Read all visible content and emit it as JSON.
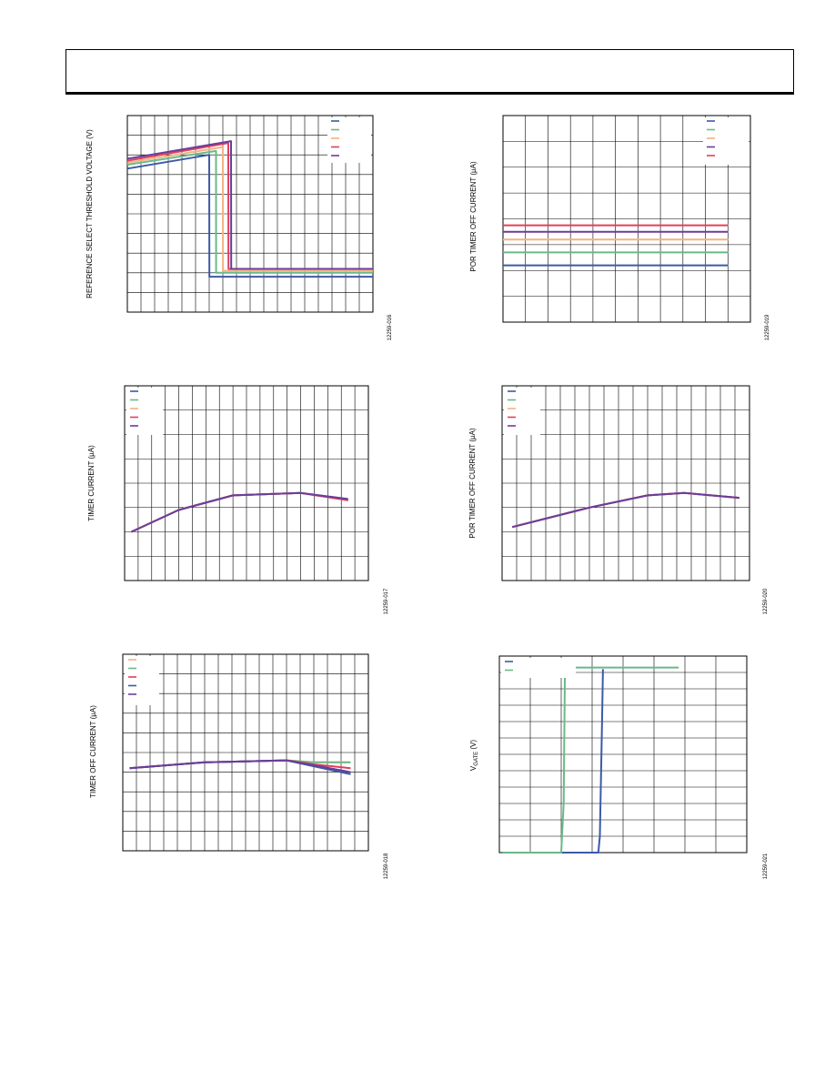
{
  "page": {
    "header_text": ""
  },
  "chart_data": [
    {
      "id": "c1",
      "type": "line",
      "title": "",
      "ylabel": "REFERENCE SELECT THRESHOLD VOLTAGE (V)",
      "figure_code": "12259-016",
      "xlim": [
        0,
        18
      ],
      "ylim": [
        0,
        10
      ],
      "x_divisions": 18,
      "y_divisions": 10,
      "legend": {
        "placement": "top-right"
      },
      "series": [
        {
          "color": "#3c5aa6",
          "x": [
            0,
            6,
            6.0,
            6.01,
            18
          ],
          "y": [
            7.3,
            8.0,
            8.0,
            1.8,
            1.8
          ]
        },
        {
          "color": "#6ab98a",
          "x": [
            0,
            6.5,
            6.5,
            6.51,
            18
          ],
          "y": [
            7.5,
            8.2,
            8.2,
            2.0,
            2.0
          ]
        },
        {
          "color": "#f4b183",
          "x": [
            0,
            7.0,
            7.0,
            7.01,
            18
          ],
          "y": [
            7.6,
            8.4,
            8.4,
            2.1,
            2.1
          ]
        },
        {
          "color": "#e0405a",
          "x": [
            0,
            7.4,
            7.4,
            7.41,
            18
          ],
          "y": [
            7.7,
            8.6,
            8.6,
            2.2,
            2.2
          ]
        },
        {
          "color": "#6a3d9a",
          "x": [
            0,
            7.6,
            7.6,
            7.61,
            18
          ],
          "y": [
            7.8,
            8.7,
            8.7,
            2.2,
            2.2
          ]
        }
      ]
    },
    {
      "id": "c2",
      "type": "line",
      "title": "",
      "ylabel": "POR TIMER OFF CURRENT (µA)",
      "figure_code": "12259-019",
      "xlim": [
        0,
        11
      ],
      "ylim": [
        0,
        8
      ],
      "x_divisions": 11,
      "y_divisions": 8,
      "legend": {
        "placement": "top-right"
      },
      "series": [
        {
          "color": "#3c5aa6",
          "x": [
            0,
            10
          ],
          "y": [
            2.2,
            2.2
          ]
        },
        {
          "color": "#6ab98a",
          "x": [
            0,
            10
          ],
          "y": [
            2.7,
            2.7
          ]
        },
        {
          "color": "#f4b183",
          "x": [
            0,
            10
          ],
          "y": [
            3.2,
            3.2
          ]
        },
        {
          "color": "#6a3d9a",
          "x": [
            0,
            10
          ],
          "y": [
            3.5,
            3.5
          ]
        },
        {
          "color": "#e0405a",
          "x": [
            0,
            10
          ],
          "y": [
            3.75,
            3.75
          ]
        }
      ]
    },
    {
      "id": "c3",
      "type": "line",
      "title": "",
      "ylabel": "TIMER CURRENT (µA)",
      "figure_code": "12259-017",
      "xlim": [
        0,
        18
      ],
      "ylim": [
        0,
        8
      ],
      "x_divisions": 18,
      "y_divisions": 8,
      "legend": {
        "placement": "top-left"
      },
      "series": [
        {
          "color": "#3c5aa6",
          "x": [
            0.5,
            4,
            8,
            13,
            16.5
          ],
          "y": [
            2.0,
            2.9,
            3.5,
            3.6,
            3.3
          ]
        },
        {
          "color": "#6ab98a",
          "x": [
            0.5,
            4,
            8,
            13,
            16.5
          ],
          "y": [
            2.0,
            2.9,
            3.5,
            3.6,
            3.3
          ]
        },
        {
          "color": "#f4b183",
          "x": [
            0.5,
            4,
            8,
            13,
            16.5
          ],
          "y": [
            2.0,
            2.9,
            3.5,
            3.6,
            3.3
          ]
        },
        {
          "color": "#e0405a",
          "x": [
            0.5,
            4,
            8,
            13,
            16.5
          ],
          "y": [
            2.0,
            2.9,
            3.5,
            3.6,
            3.3
          ]
        },
        {
          "color": "#6a3d9a",
          "x": [
            0.5,
            4,
            8,
            13,
            16.5
          ],
          "y": [
            2.0,
            2.9,
            3.5,
            3.6,
            3.35
          ]
        }
      ]
    },
    {
      "id": "c4",
      "type": "line",
      "title": "",
      "ylabel": "POR TIMER OFF CURRENT (µA)",
      "figure_code": "12259-020",
      "xlim": [
        0,
        17
      ],
      "ylim": [
        0,
        8
      ],
      "x_divisions": 17,
      "y_divisions": 8,
      "legend": {
        "placement": "top-left"
      },
      "series": [
        {
          "color": "#3c5aa6",
          "x": [
            0.7,
            6,
            10,
            12.5,
            16.3
          ],
          "y": [
            2.2,
            3.0,
            3.5,
            3.6,
            3.4
          ]
        },
        {
          "color": "#6ab98a",
          "x": [
            0.7,
            6,
            10,
            12.5,
            16.3
          ],
          "y": [
            2.2,
            3.0,
            3.5,
            3.6,
            3.4
          ]
        },
        {
          "color": "#f4b183",
          "x": [
            0.7,
            6,
            10,
            12.5,
            16.3
          ],
          "y": [
            2.2,
            3.0,
            3.5,
            3.6,
            3.4
          ]
        },
        {
          "color": "#e0405a",
          "x": [
            0.7,
            6,
            10,
            12.5,
            16.3
          ],
          "y": [
            2.2,
            3.0,
            3.5,
            3.6,
            3.4
          ]
        },
        {
          "color": "#6a3d9a",
          "x": [
            0.7,
            6,
            10,
            12.5,
            16.3
          ],
          "y": [
            2.2,
            3.0,
            3.5,
            3.6,
            3.4
          ]
        }
      ]
    },
    {
      "id": "c5",
      "type": "line",
      "title": "",
      "ylabel": "TIMER OFF CURRENT (µA)",
      "figure_code": "12259-018",
      "xlim": [
        0,
        18
      ],
      "ylim": [
        0,
        10
      ],
      "x_divisions": 18,
      "y_divisions": 10,
      "legend": {
        "placement": "top-left"
      },
      "series": [
        {
          "color": "#f4b183",
          "x": [
            0.5,
            6,
            12,
            14,
            16.7
          ],
          "y": [
            4.2,
            4.5,
            4.6,
            4.5,
            4.5
          ]
        },
        {
          "color": "#6ab98a",
          "x": [
            0.5,
            6,
            12,
            14,
            16.7
          ],
          "y": [
            4.2,
            4.5,
            4.6,
            4.5,
            4.5
          ]
        },
        {
          "color": "#e0405a",
          "x": [
            0.5,
            6,
            12,
            14,
            16.7
          ],
          "y": [
            4.2,
            4.5,
            4.6,
            4.4,
            4.2
          ]
        },
        {
          "color": "#3c5aa6",
          "x": [
            0.5,
            6,
            12,
            14,
            16.7
          ],
          "y": [
            4.2,
            4.5,
            4.6,
            4.3,
            3.9
          ]
        },
        {
          "color": "#6a3d9a",
          "x": [
            0.5,
            6,
            12,
            14,
            16.7
          ],
          "y": [
            4.2,
            4.5,
            4.6,
            4.35,
            4.0
          ]
        }
      ]
    },
    {
      "id": "c6",
      "type": "line",
      "title": "",
      "ylabel_main": "V",
      "ylabel_sub": "GATE",
      "ylabel_tail": " (V)",
      "figure_code": "12259-021",
      "xlim": [
        0,
        8
      ],
      "ylim": [
        0,
        12
      ],
      "x_divisions": 8,
      "y_divisions": 12,
      "legend": {
        "placement": "top-left"
      },
      "series": [
        {
          "color": "#3c5aa6",
          "x": [
            0.1,
            3.2,
            3.25,
            3.32,
            3.35
          ],
          "y": [
            0,
            0,
            1,
            8,
            11.2
          ]
        },
        {
          "color": "#6ab98a",
          "x": [
            0.1,
            2.0,
            2.08,
            2.12,
            5.8
          ],
          "y": [
            0,
            0,
            3,
            11.3,
            11.3
          ]
        }
      ]
    }
  ]
}
